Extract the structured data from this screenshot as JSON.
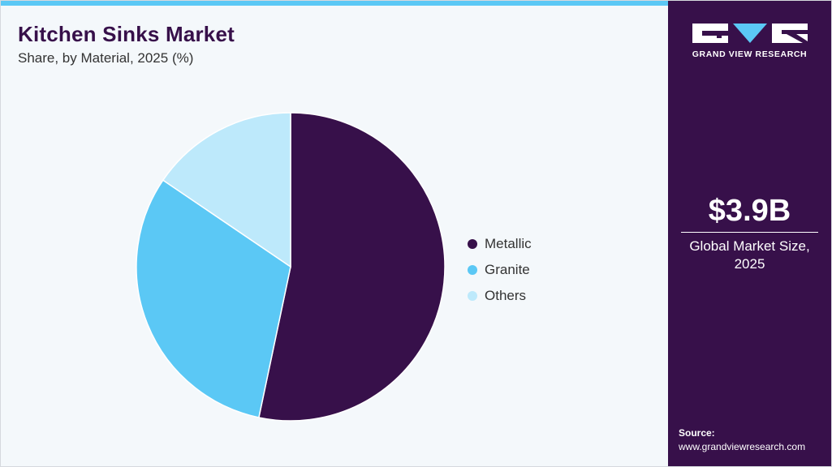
{
  "header": {
    "title": "Kitchen Sinks Market",
    "subtitle": "Share, by Material, 2025 (%)"
  },
  "colors": {
    "brand_dark": "#37104a",
    "accent": "#5bc8f5",
    "background": "#f4f8fb"
  },
  "chart_data": {
    "type": "pie",
    "title": "Kitchen Sinks Market",
    "subtitle": "Share, by Material, 2025 (%)",
    "start_angle_deg": 0,
    "direction": "clockwise",
    "legend_position": "right",
    "slices": [
      {
        "label": "Metallic",
        "value": 53.3,
        "color": "#37104a"
      },
      {
        "label": "Granite",
        "value": 31.2,
        "color": "#5bc8f5"
      },
      {
        "label": "Others",
        "value": 15.5,
        "color": "#bde9fb"
      }
    ]
  },
  "sidebar": {
    "brand_name": "GRAND VIEW RESEARCH",
    "market_value": "$3.9B",
    "market_caption": "Global Market Size, 2025",
    "source_label": "Source:",
    "source_url": "www.grandviewresearch.com"
  }
}
